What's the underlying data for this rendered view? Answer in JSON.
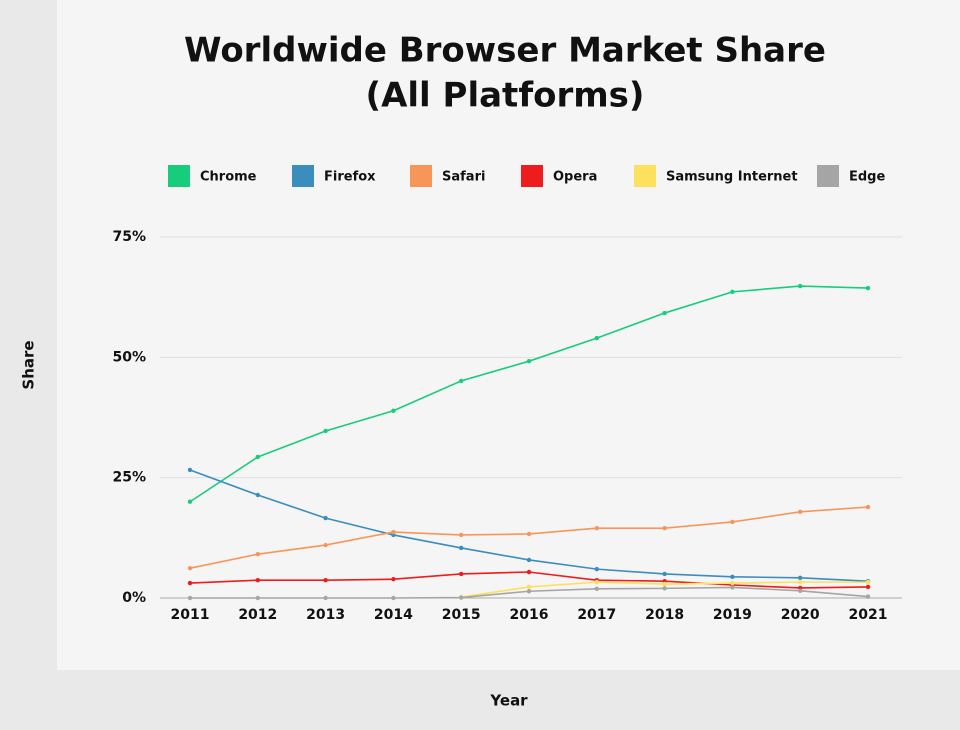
{
  "chart_data": {
    "type": "line",
    "title": "Worldwide Browser Market Share",
    "subtitle": "(All Platforms)",
    "x_label": "Year",
    "y_label": "Share",
    "categories": [
      "2011",
      "2012",
      "2013",
      "2014",
      "2015",
      "2016",
      "2017",
      "2018",
      "2019",
      "2020",
      "2021"
    ],
    "series": [
      {
        "name": "Chrome",
        "color": "#17cd7c",
        "values": [
          20,
          29.3,
          34.7,
          38.9,
          45.1,
          49.2,
          54.0,
          59.2,
          63.6,
          64.8,
          64.4
        ]
      },
      {
        "name": "Firefox",
        "color": "#3a8dbd",
        "values": [
          26.6,
          21.4,
          16.6,
          13.1,
          10.4,
          7.9,
          6.0,
          5.0,
          4.4,
          4.2,
          3.5
        ]
      },
      {
        "name": "Safari",
        "color": "#f8965a",
        "values": [
          6.2,
          9.1,
          11.0,
          13.7,
          13.1,
          13.3,
          14.5,
          14.5,
          15.8,
          17.9,
          18.9
        ]
      },
      {
        "name": "Opera",
        "color": "#ee1c1c",
        "values": [
          3.1,
          3.7,
          3.7,
          3.9,
          5.0,
          5.4,
          3.7,
          3.5,
          2.7,
          2.1,
          2.3
        ]
      },
      {
        "name": "Samsung Internet",
        "color": "#fde05c",
        "values": [
          null,
          null,
          null,
          null,
          0.2,
          2.3,
          3.3,
          2.9,
          3.1,
          3.3,
          3.3
        ]
      },
      {
        "name": "Edge",
        "color": "#a5a5a5",
        "values": [
          0,
          0,
          0,
          0,
          0.1,
          1.4,
          1.9,
          2.0,
          2.2,
          1.5,
          0.3
        ]
      }
    ],
    "ylim": [
      0,
      75
    ],
    "yticks": [
      {
        "value": 0,
        "label": "0%"
      },
      {
        "value": 25,
        "label": "25%"
      },
      {
        "value": 50,
        "label": "50%"
      },
      {
        "value": 75,
        "label": "75%"
      }
    ],
    "grid": true
  }
}
